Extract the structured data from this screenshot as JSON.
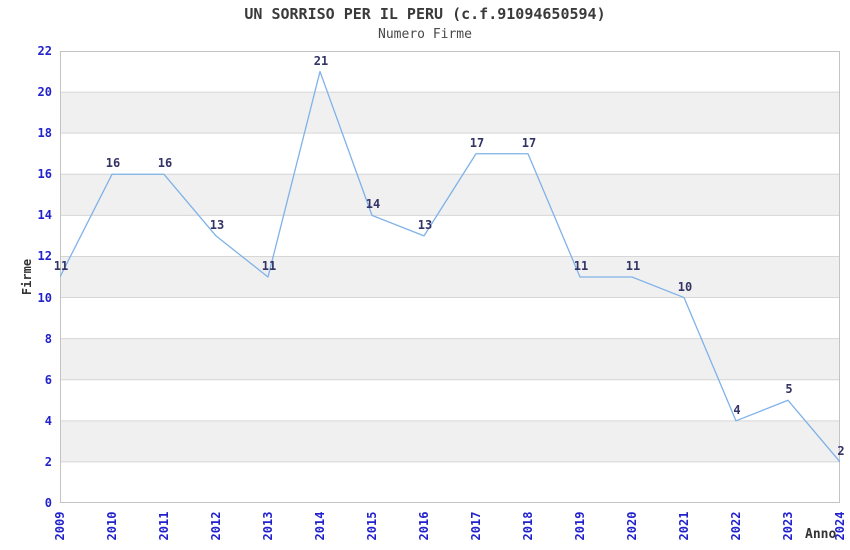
{
  "chart_data": {
    "type": "line",
    "title": "UN SORRISO PER IL PERU (c.f.91094650594)",
    "subtitle": "Numero Firme",
    "xlabel": "Anno",
    "ylabel": "Firme",
    "categories": [
      "2009",
      "2010",
      "2011",
      "2012",
      "2013",
      "2014",
      "2015",
      "2016",
      "2017",
      "2018",
      "2019",
      "2020",
      "2021",
      "2022",
      "2023",
      "2024"
    ],
    "values": [
      11,
      16,
      16,
      13,
      11,
      21,
      14,
      13,
      17,
      17,
      11,
      11,
      10,
      4,
      5,
      2
    ],
    "ylim": [
      0,
      22
    ],
    "ytick_step": 2,
    "grid": "horizontal-bands",
    "legend": "none",
    "point_labels_shown": true,
    "colors": {
      "line": "#7fb2e8",
      "tick_label": "#2222cc",
      "data_label": "#333366",
      "band": "#f0f0f0",
      "gridline": "#d6d6d6",
      "plot_border": "#c4c4c4",
      "title_text": "#3a3a3a",
      "subtitle_text": "#484848",
      "axis_title": "#333333",
      "background": "#ffffff"
    }
  }
}
